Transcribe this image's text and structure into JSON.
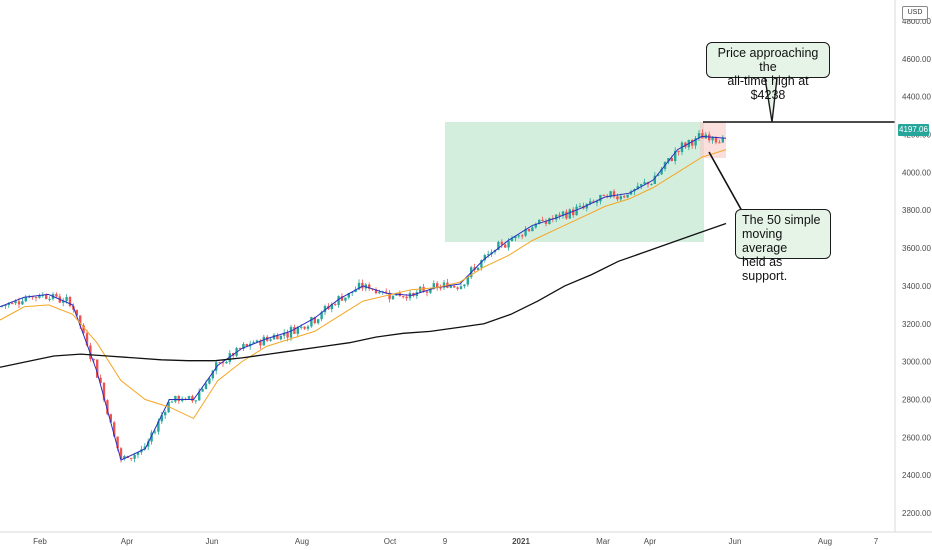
{
  "chart_data": {
    "type": "candlestick",
    "currency": "USD",
    "last_price": "4197.06",
    "ylim": [
      2100,
      4900
    ],
    "y_ticks": [
      "2200.00",
      "2400.00",
      "2600.00",
      "2800.00",
      "3000.00",
      "3200.00",
      "3400.00",
      "3600.00",
      "3800.00",
      "4000.00",
      "4200.00",
      "4400.00",
      "4600.00",
      "4800.00"
    ],
    "x_ticks": [
      "Feb",
      "Apr",
      "Jun",
      "Aug",
      "Oct",
      "9",
      "2021",
      "Mar",
      "Apr",
      "Jun",
      "Aug",
      "7"
    ],
    "all_time_high": 4238,
    "support_box_range": [
      3580,
      4220
    ],
    "series": [
      {
        "name": "",
        "color": "#2b2dbe",
        "values": [
          3290,
          3340,
          3355,
          3300,
          2950,
          2480,
          2540,
          2800,
          2800,
          2980,
          3070,
          3120,
          3160,
          3230,
          3330,
          3400,
          3360,
          3350,
          3390,
          3410,
          3540,
          3640,
          3720,
          3760,
          3810,
          3870,
          3890,
          3960,
          4120,
          4190,
          4180
        ]
      },
      {
        "name": "",
        "color": "#f5a623",
        "values": [
          3220,
          3290,
          3300,
          3250,
          3100,
          2900,
          2800,
          2760,
          2700,
          2900,
          3000,
          3080,
          3120,
          3160,
          3240,
          3320,
          3350,
          3380,
          3390,
          3420,
          3500,
          3560,
          3640,
          3700,
          3760,
          3820,
          3860,
          3920,
          4000,
          4080,
          4120
        ]
      },
      {
        "name": "",
        "color": "#111111",
        "values": [
          2970,
          3000,
          3030,
          3040,
          3030,
          3020,
          3010,
          3005,
          3005,
          3020,
          3040,
          3060,
          3080,
          3100,
          3130,
          3150,
          3160,
          3180,
          3200,
          3250,
          3320,
          3400,
          3460,
          3530,
          3580,
          3630,
          3680,
          3730
        ]
      }
    ],
    "annotations": [
      {
        "text_lines": [
          "Price approaching the",
          "all-time high at $4238"
        ]
      },
      {
        "text_lines": [
          "The 50 simple",
          "moving average",
          "held as support."
        ]
      }
    ]
  }
}
